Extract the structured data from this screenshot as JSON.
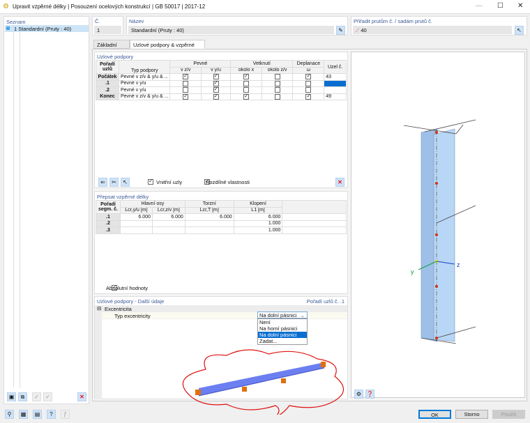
{
  "window": {
    "title": "Upravit vzpěrné délky | Posouzení ocelových konstrukcí | GB 50017 | 2017-12",
    "minimize": "—",
    "maximize": "☐",
    "close": "✕"
  },
  "list": {
    "header": "Seznam",
    "items": [
      {
        "label": "1  Standardní (Pruty : 40)"
      }
    ]
  },
  "number": {
    "label": "Č.",
    "value": "1"
  },
  "name": {
    "label": "Název",
    "value": "Standardní (Pruty : 40)"
  },
  "assign": {
    "label": "Přiřadit prutům č. / sadám prutů č.",
    "value": "40"
  },
  "tabs": [
    {
      "label": "Základní údaje"
    },
    {
      "label": "Uzlové podpory & vzpěrné délky",
      "active": true
    }
  ],
  "supports": {
    "title": "Uzlové podpory",
    "headers": {
      "order": "Pořadí uzlů",
      "type": "Typ podpory",
      "fixed": "Pevné",
      "vzv": "v z/v",
      "vyu": "v y/u",
      "restraint": "Vetknutí",
      "aroundx": "okolo x",
      "aroundzv": "okolo z/v",
      "warping": "Deplanace",
      "omega": "ω",
      "node": "Uzel č."
    },
    "rows": [
      {
        "order": "Počátek",
        "type": "Pevné v z/v & y/u & ...",
        "checks": [
          true,
          true,
          true,
          false,
          true
        ],
        "node": "43"
      },
      {
        "order": ".1",
        "type": "Pevné v y/u",
        "checks": [
          false,
          true,
          false,
          false,
          false
        ],
        "node": ""
      },
      {
        "order": ".2",
        "type": "Pevné v y/u",
        "checks": [
          false,
          true,
          false,
          false,
          false
        ],
        "node": ""
      },
      {
        "order": "Konec",
        "type": "Pevné v z/v & y/u & ...",
        "checks": [
          true,
          true,
          true,
          false,
          true
        ],
        "node": "49"
      }
    ],
    "inner_nodes": {
      "label": "Vnitřní uzly",
      "checked": true
    },
    "different_props": {
      "label": "Rozdílné vlastnosti",
      "checked": true
    }
  },
  "lengths": {
    "title": "Přepsat vzpěrné délky",
    "headers": {
      "order": "Pořadí segm. č.",
      "main": "Hlavní osy",
      "lcry": "Lcr,y/u [m]",
      "lcrz": "Lcr,z/v [m]",
      "torsion": "Torzní",
      "lcrt": "Lcr,T [m]",
      "ltb": "Klopení",
      "l1": "L1 [m]"
    },
    "rows": [
      {
        "order": ".1",
        "lcry": "6.000",
        "lcrz": "6.000",
        "lcrt": "6.000",
        "l1": "6.000"
      },
      {
        "order": ".2",
        "lcry": "",
        "lcrz": "",
        "lcrt": "",
        "l1": "1.000"
      },
      {
        "order": ".3",
        "lcry": "",
        "lcrz": "",
        "lcrt": "",
        "l1": "1.000"
      }
    ],
    "absolute": {
      "label": "Absolutní hodnoty",
      "checked": true
    }
  },
  "details": {
    "title": "Uzlové podpory - Další údaje",
    "order_label": "Pořadí uzlů č. .1",
    "group": "Excentricita",
    "prop": "Typ excentricity",
    "value": "Na dolní pásnici",
    "options": [
      "Není",
      "Na horní pásnici",
      "Na dolní pásnici",
      "Zadat..."
    ],
    "selected": 2
  },
  "view": {
    "axis_y": "y",
    "axis_z": "z"
  },
  "buttons": {
    "ok": "OK",
    "cancel": "Storno",
    "apply": "Použít"
  },
  "colors": {
    "accent": "#0a6ed1",
    "delete": "#e81123",
    "member": "#9dbfe8",
    "support": "#e07010",
    "cloud": "#e01010"
  }
}
